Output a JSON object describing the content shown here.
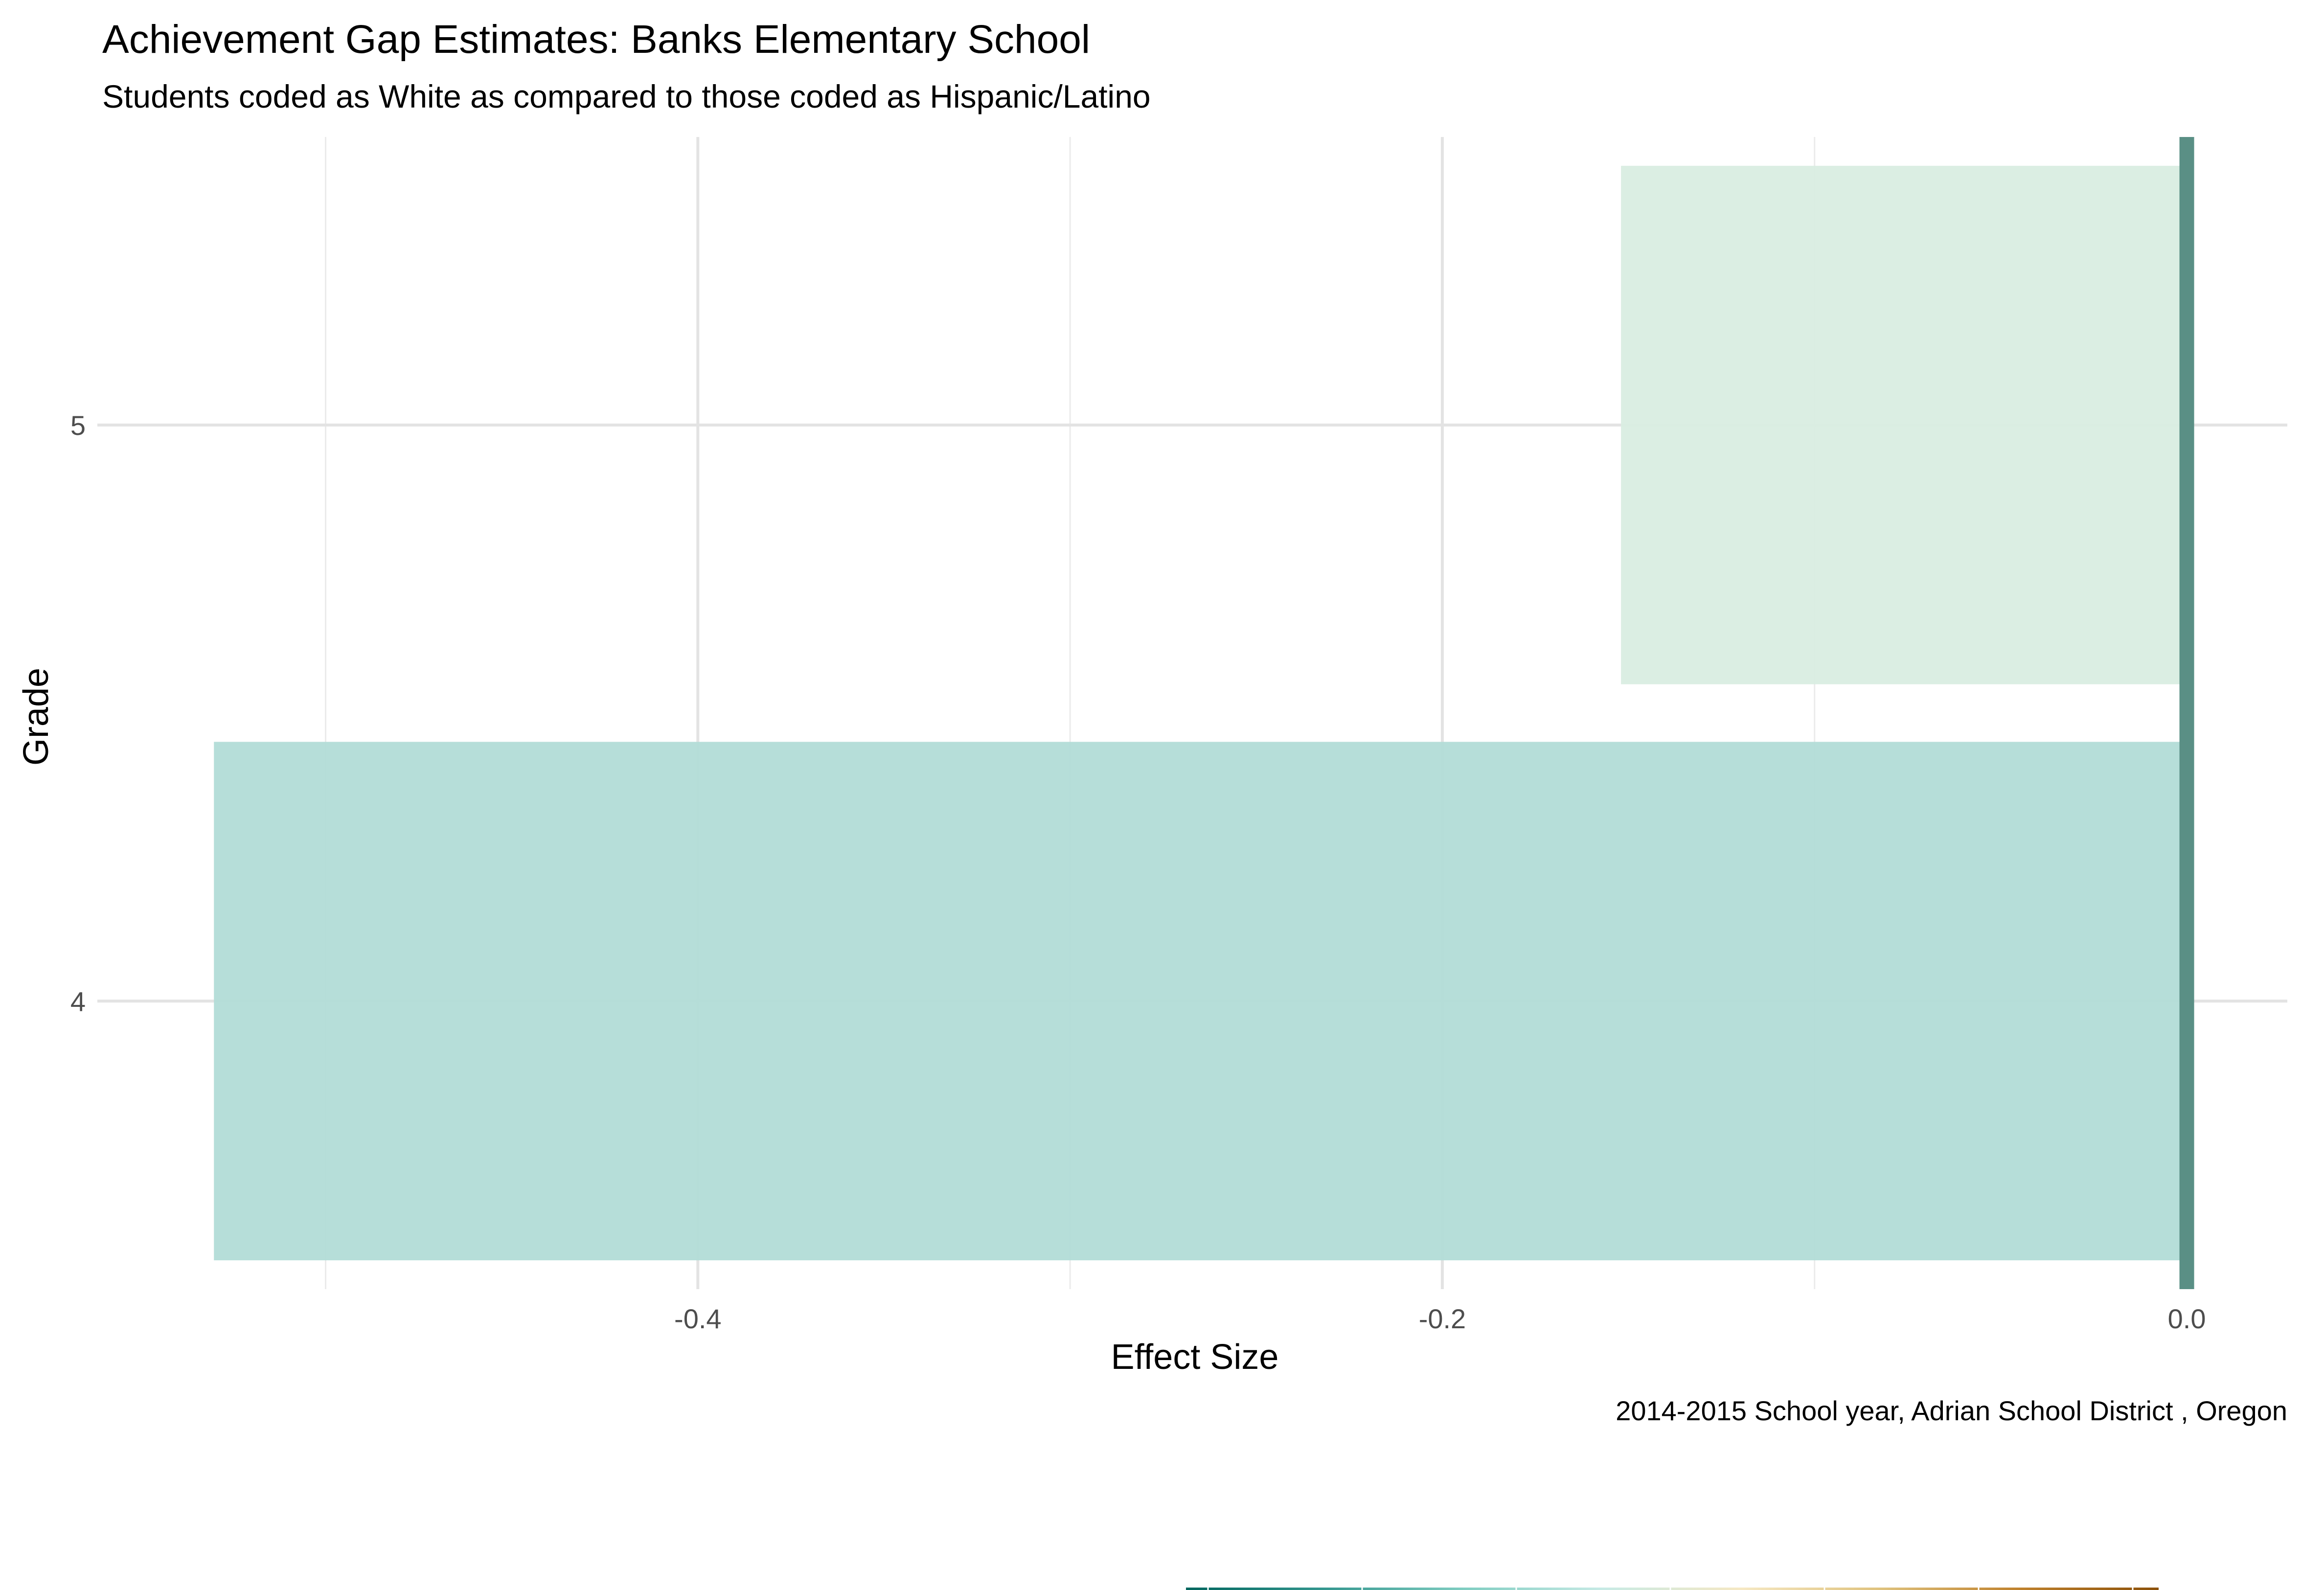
{
  "chart_data": {
    "type": "bar",
    "orientation": "horizontal",
    "title": "Achievement Gap Estimates: Banks Elementary School",
    "subtitle": "Students coded as White as compared to those coded as Hispanic/Latino",
    "xlabel": "Effect Size",
    "ylabel": "Grade",
    "caption": "2014-2015 School year,  Adrian School District , Oregon",
    "categories": [
      "4",
      "5"
    ],
    "values": [
      -0.53,
      -0.152
    ],
    "bar_colors": [
      "#b2dcd7",
      "#d9ede1"
    ],
    "xlim": [
      -0.56,
      0.027
    ],
    "x_ticks": [
      -0.4,
      -0.2,
      0.0
    ],
    "x_tick_labels": [
      "-0.4",
      "-0.2",
      "0.0"
    ],
    "reference_line": {
      "x": 0,
      "color": "#5a8f85"
    },
    "grid": true,
    "legend": {
      "type": "colorbar",
      "position": "bottom",
      "colors": [
        "#01665e",
        "#35978f",
        "#80cdc1",
        "#c7eae5",
        "#f6e8c3",
        "#dfc27d",
        "#bf812d",
        "#8c510a"
      ]
    }
  }
}
